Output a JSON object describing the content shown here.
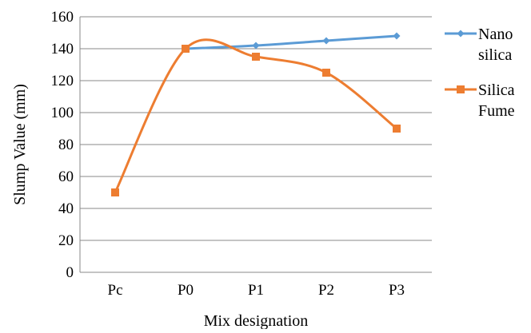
{
  "chart_data": {
    "type": "line",
    "xlabel": "Mix designation",
    "ylabel": "Slump Value (mm)",
    "categories": [
      "Pc",
      "P0",
      "P1",
      "P2",
      "P3"
    ],
    "ylim": [
      0,
      160
    ],
    "yticks": [
      0,
      20,
      40,
      60,
      80,
      100,
      120,
      140,
      160
    ],
    "grid": "horizontal",
    "legend_position": "right",
    "smooth": true,
    "series": [
      {
        "name_lines": [
          "Nano",
          "silica"
        ],
        "color": "#5B9BD5",
        "marker": "diamond",
        "values": [
          null,
          140,
          142,
          145,
          148
        ]
      },
      {
        "name_lines": [
          "Silica",
          "Fume"
        ],
        "color": "#ED7D31",
        "marker": "square",
        "values": [
          50,
          140,
          135,
          125,
          90
        ]
      }
    ]
  }
}
